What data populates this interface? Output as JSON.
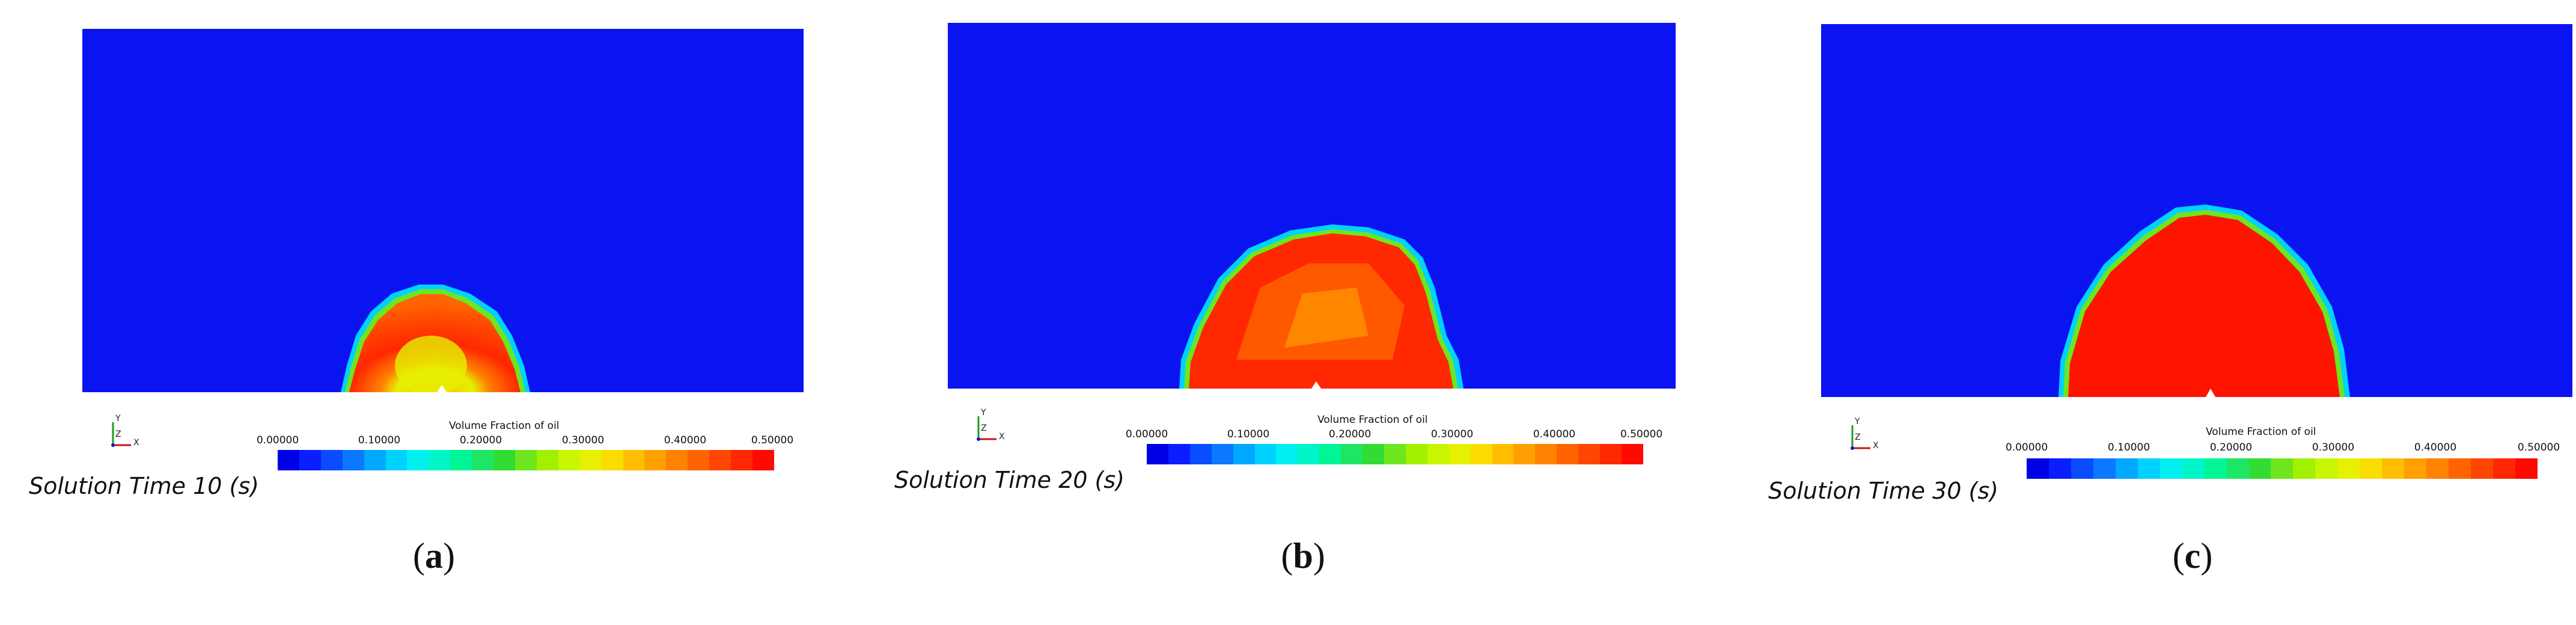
{
  "colormap": {
    "background_blue": "#0a14f0",
    "colors": [
      "#0000e6",
      "#0a1eff",
      "#0a4cff",
      "#0a78ff",
      "#00a8ff",
      "#00d2ff",
      "#00f0f0",
      "#00f5c8",
      "#00f596",
      "#1ee664",
      "#32dc32",
      "#6ee61e",
      "#a0f000",
      "#c8f500",
      "#e6f000",
      "#fadc00",
      "#ffbe00",
      "#ffa000",
      "#ff8200",
      "#ff6400",
      "#ff4600",
      "#ff2800",
      "#ff0a00"
    ]
  },
  "panels": [
    {
      "solution_time": "Solution Time 10 (s)",
      "legend_title": "Volume Fraction of oil",
      "ticks": [
        "0.00000",
        "0.10000",
        "0.20000",
        "0.30000",
        "0.40000",
        "0.50000"
      ],
      "caption_letter": "a",
      "axis": {
        "y": "Y",
        "x": "X",
        "z": "Z"
      }
    },
    {
      "solution_time": "Solution Time 20 (s)",
      "legend_title": "Volume Fraction of oil",
      "ticks": [
        "0.00000",
        "0.10000",
        "0.20000",
        "0.30000",
        "0.40000",
        "0.50000"
      ],
      "caption_letter": "b",
      "axis": {
        "y": "Y",
        "x": "X",
        "z": "Z"
      }
    },
    {
      "solution_time": "Solution Time 30 (s)",
      "legend_title": "Volume Fraction of oil",
      "ticks": [
        "0.00000",
        "0.10000",
        "0.20000",
        "0.30000",
        "0.40000",
        "0.50000"
      ],
      "caption_letter": "c",
      "axis": {
        "y": "Y",
        "x": "X",
        "z": "Z"
      }
    }
  ]
}
